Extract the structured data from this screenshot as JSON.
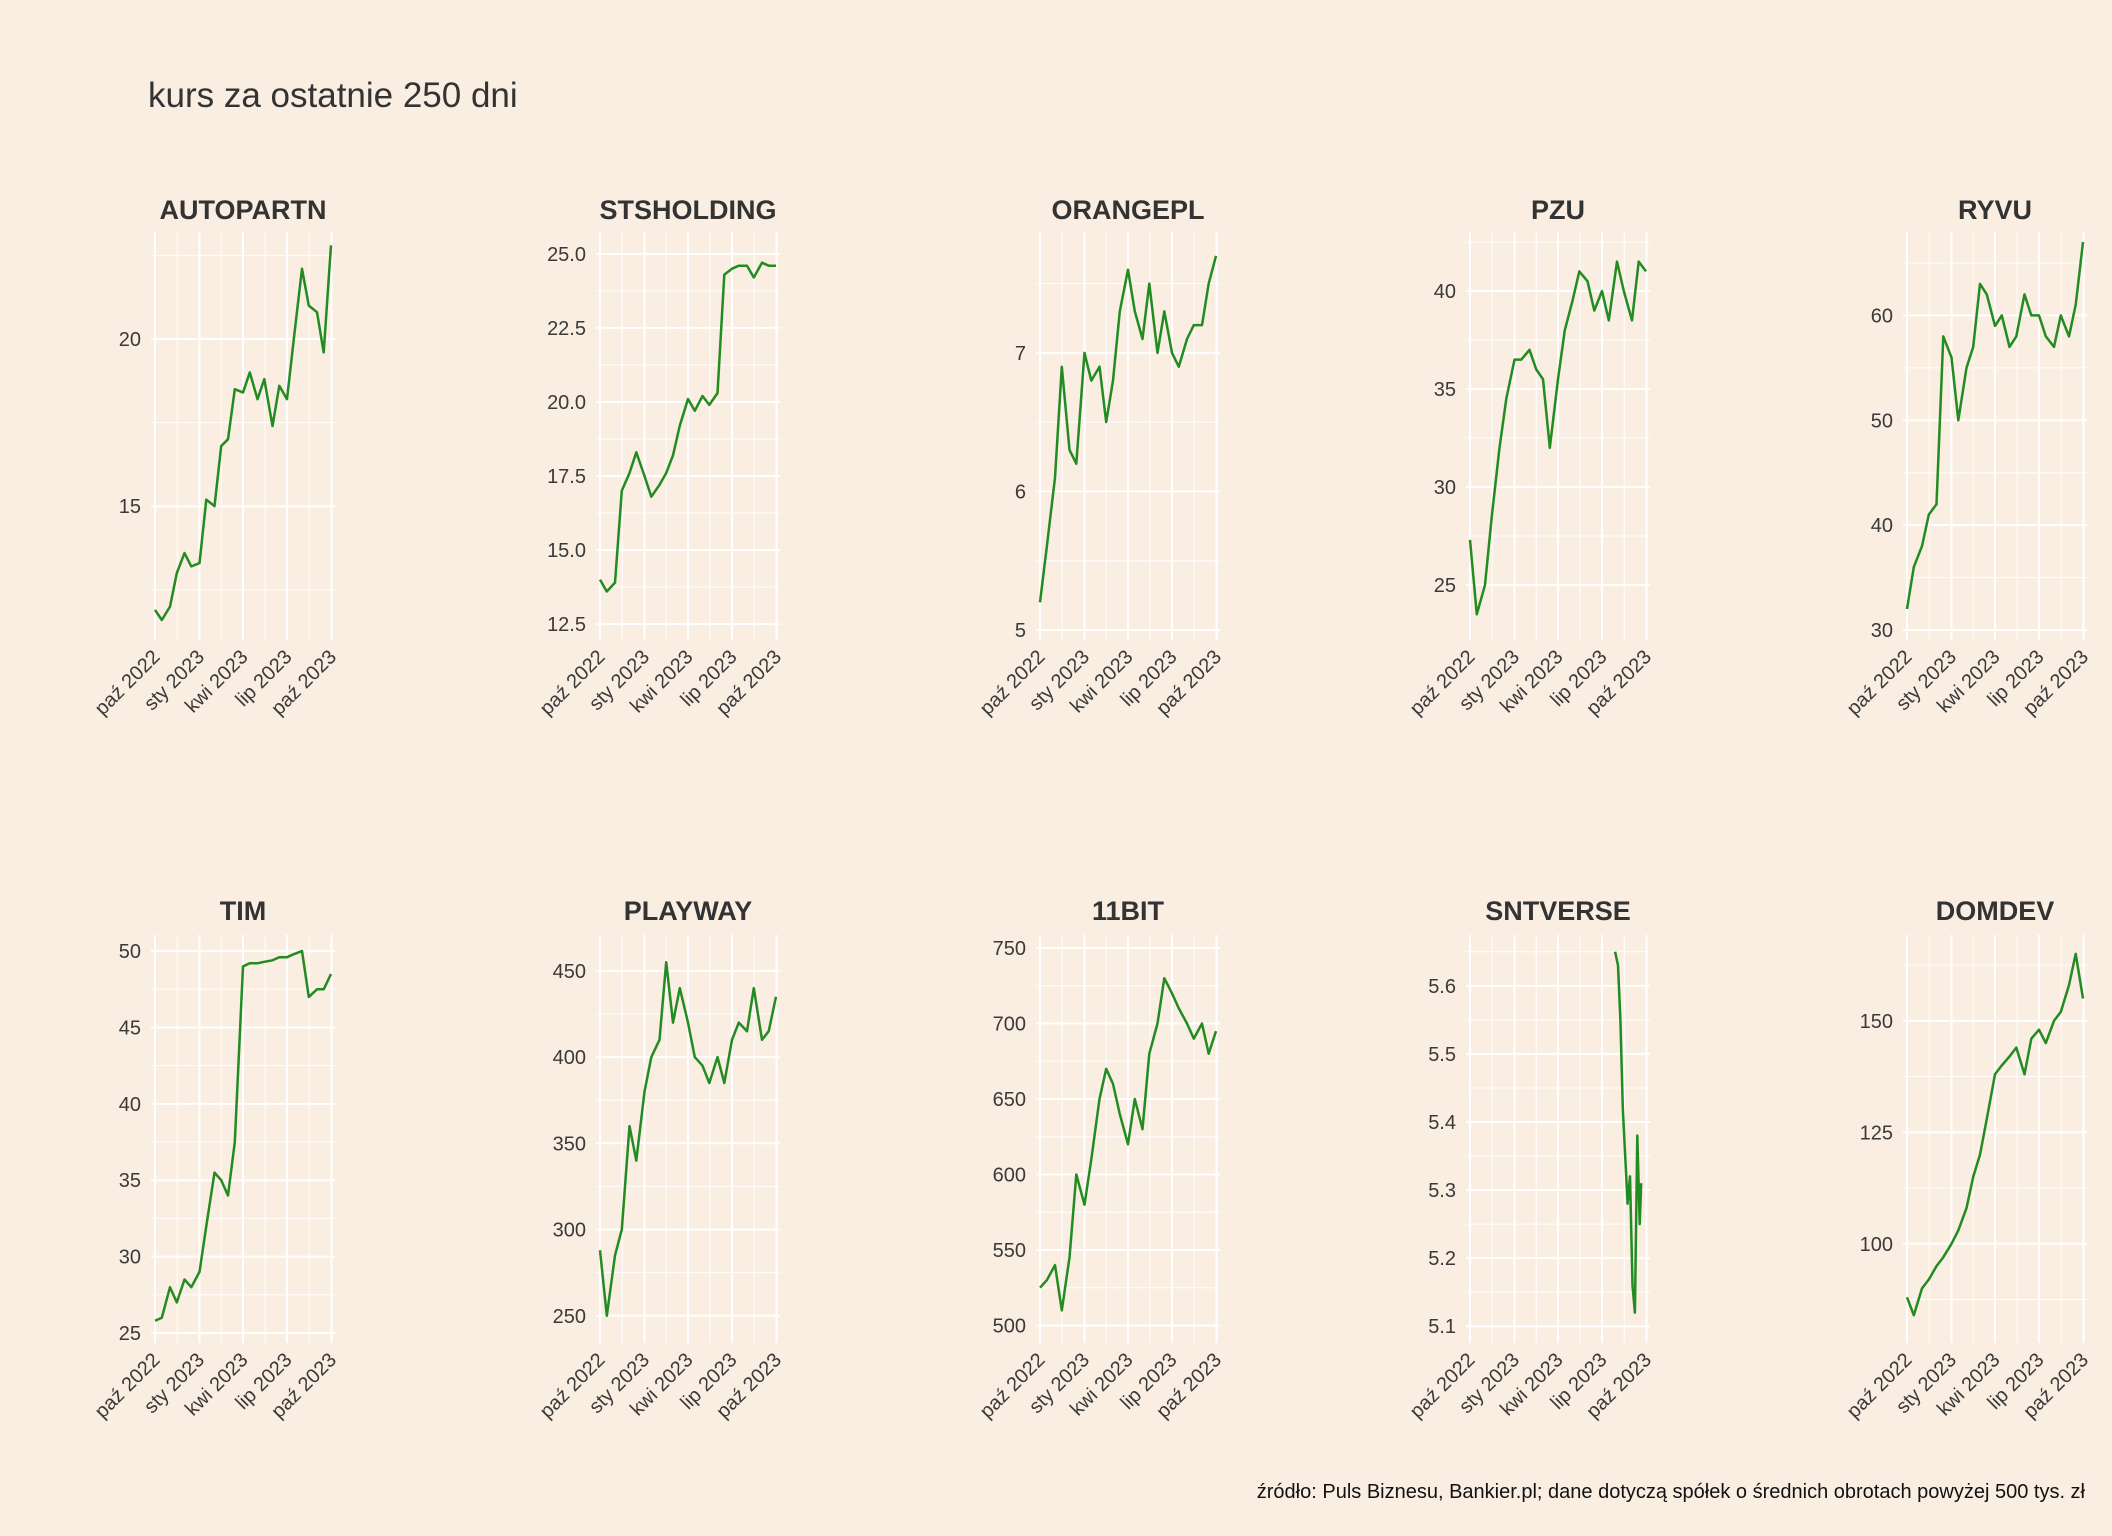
{
  "title": "kurs za ostatnie 250 dni",
  "caption": "źródło: Puls Biznesu, Bankier.pl; dane dotyczą spółek o średnich obrotach powyżej 500 tys. zł",
  "colors": {
    "background": "#FAEDE1",
    "line": "#228B22",
    "grid": "#FFFFFF",
    "text": "#3a3a3a"
  },
  "chart_data": [
    {
      "type": "line",
      "title": "AUTOPARTN",
      "x_tick_labels": [
        "paź 2022",
        "sty 2023",
        "kwi 2023",
        "lip 2023",
        "paź 2023"
      ],
      "y_ticks": [
        15,
        20
      ],
      "ylim": [
        11.3,
        22.9
      ],
      "xlim": [
        "2022-10-01",
        "2023-09-30"
      ],
      "series": [
        {
          "x": [
            "2022-10-01",
            "2022-10-15",
            "2022-11-01",
            "2022-11-15",
            "2022-12-01",
            "2022-12-15",
            "2023-01-01",
            "2023-01-15",
            "2023-02-01",
            "2023-02-15",
            "2023-03-01",
            "2023-03-15",
            "2023-04-01",
            "2023-04-15",
            "2023-05-01",
            "2023-05-15",
            "2023-06-01",
            "2023-06-15",
            "2023-07-01",
            "2023-07-15",
            "2023-08-01",
            "2023-08-15",
            "2023-09-01",
            "2023-09-15",
            "2023-09-30"
          ],
          "y": [
            11.9,
            11.6,
            12.0,
            13.0,
            13.6,
            13.2,
            13.3,
            15.2,
            15.0,
            16.8,
            17.0,
            18.5,
            18.4,
            19.0,
            18.2,
            18.8,
            17.4,
            18.6,
            18.2,
            20.0,
            22.1,
            21.0,
            20.8,
            19.6,
            22.8
          ]
        }
      ]
    },
    {
      "type": "line",
      "title": "STSHOLDING",
      "x_tick_labels": [
        "paź 2022",
        "sty 2023",
        "kwi 2023",
        "lip 2023",
        "paź 2023"
      ],
      "y_ticks": [
        12.5,
        15.0,
        17.5,
        20.0,
        22.5,
        25.0
      ],
      "y_tick_labels": [
        "12.5",
        "15.0",
        "17.5",
        "20.0",
        "22.5",
        "25.0"
      ],
      "ylim": [
        12.3,
        25.4
      ],
      "xlim": [
        "2022-10-01",
        "2023-09-30"
      ],
      "series": [
        {
          "x": [
            "2022-10-01",
            "2022-10-15",
            "2022-11-01",
            "2022-11-15",
            "2022-12-01",
            "2022-12-15",
            "2023-01-01",
            "2023-01-15",
            "2023-02-01",
            "2023-02-15",
            "2023-03-01",
            "2023-03-15",
            "2023-04-01",
            "2023-04-15",
            "2023-05-01",
            "2023-05-15",
            "2023-06-01",
            "2023-06-15",
            "2023-07-01",
            "2023-07-15",
            "2023-08-01",
            "2023-08-15",
            "2023-09-01",
            "2023-09-15",
            "2023-09-30"
          ],
          "y": [
            14.0,
            13.6,
            13.9,
            17.0,
            17.6,
            18.3,
            17.5,
            16.8,
            17.2,
            17.6,
            18.2,
            19.2,
            20.1,
            19.7,
            20.2,
            19.9,
            20.3,
            24.3,
            24.5,
            24.6,
            24.6,
            24.2,
            24.7,
            24.6,
            24.6
          ]
        }
      ]
    },
    {
      "type": "line",
      "title": "ORANGEPL",
      "x_tick_labels": [
        "paź 2022",
        "sty 2023",
        "kwi 2023",
        "lip 2023",
        "paź 2023"
      ],
      "y_ticks": [
        5,
        6,
        7
      ],
      "ylim": [
        5.0,
        7.8
      ],
      "xlim": [
        "2022-10-01",
        "2023-09-30"
      ],
      "series": [
        {
          "x": [
            "2022-10-01",
            "2022-10-15",
            "2022-11-01",
            "2022-11-15",
            "2022-12-01",
            "2022-12-15",
            "2023-01-01",
            "2023-01-15",
            "2023-02-01",
            "2023-02-15",
            "2023-03-01",
            "2023-03-15",
            "2023-04-01",
            "2023-04-15",
            "2023-05-01",
            "2023-05-15",
            "2023-06-01",
            "2023-06-15",
            "2023-07-01",
            "2023-07-15",
            "2023-08-01",
            "2023-08-15",
            "2023-09-01",
            "2023-09-15",
            "2023-09-30"
          ],
          "y": [
            5.2,
            5.6,
            6.1,
            6.9,
            6.3,
            6.2,
            7.0,
            6.8,
            6.9,
            6.5,
            6.8,
            7.3,
            7.6,
            7.3,
            7.1,
            7.5,
            7.0,
            7.3,
            7.0,
            6.9,
            7.1,
            7.2,
            7.2,
            7.5,
            7.7
          ]
        }
      ]
    },
    {
      "type": "line",
      "title": "PZU",
      "x_tick_labels": [
        "paź 2022",
        "sty 2023",
        "kwi 2023",
        "lip 2023",
        "paź 2023"
      ],
      "y_ticks": [
        25,
        30,
        35,
        40
      ],
      "ylim": [
        22.7,
        42.5
      ],
      "xlim": [
        "2022-10-01",
        "2023-09-30"
      ],
      "series": [
        {
          "x": [
            "2022-10-01",
            "2022-10-15",
            "2022-11-01",
            "2022-11-15",
            "2022-12-01",
            "2022-12-15",
            "2023-01-01",
            "2023-01-15",
            "2023-02-01",
            "2023-02-15",
            "2023-03-01",
            "2023-03-15",
            "2023-04-01",
            "2023-04-15",
            "2023-05-01",
            "2023-05-15",
            "2023-06-01",
            "2023-06-15",
            "2023-07-01",
            "2023-07-15",
            "2023-08-01",
            "2023-08-15",
            "2023-09-01",
            "2023-09-15",
            "2023-09-30"
          ],
          "y": [
            27.3,
            23.5,
            25.0,
            28.5,
            32.0,
            34.5,
            36.5,
            36.5,
            37.0,
            36.0,
            35.5,
            32.0,
            35.5,
            38.0,
            39.5,
            41.0,
            40.5,
            39.0,
            40.0,
            38.5,
            41.5,
            40.0,
            38.5,
            41.5,
            41.0
          ]
        }
      ]
    },
    {
      "type": "line",
      "title": "RYVU",
      "x_tick_labels": [
        "paź 2022",
        "sty 2023",
        "kwi 2023",
        "lip 2023",
        "paź 2023"
      ],
      "y_ticks": [
        30,
        40,
        50,
        60
      ],
      "ylim": [
        30,
        67
      ],
      "xlim": [
        "2022-10-01",
        "2023-09-30"
      ],
      "series": [
        {
          "x": [
            "2022-10-01",
            "2022-10-15",
            "2022-11-01",
            "2022-11-15",
            "2022-12-01",
            "2022-12-15",
            "2023-01-01",
            "2023-01-15",
            "2023-02-01",
            "2023-02-15",
            "2023-03-01",
            "2023-03-15",
            "2023-04-01",
            "2023-04-15",
            "2023-05-01",
            "2023-05-15",
            "2023-06-01",
            "2023-06-15",
            "2023-07-01",
            "2023-07-15",
            "2023-08-01",
            "2023-08-15",
            "2023-09-01",
            "2023-09-15",
            "2023-09-30"
          ],
          "y": [
            32,
            36,
            38,
            41,
            42,
            58,
            56,
            50,
            55,
            57,
            63,
            62,
            59,
            60,
            57,
            58,
            62,
            60,
            60,
            58,
            57,
            60,
            58,
            61,
            67
          ]
        }
      ]
    },
    {
      "type": "line",
      "title": "TIM",
      "x_tick_labels": [
        "paź 2022",
        "sty 2023",
        "kwi 2023",
        "lip 2023",
        "paź 2023"
      ],
      "y_ticks": [
        25,
        30,
        35,
        40,
        45,
        50
      ],
      "ylim": [
        25,
        50.4
      ],
      "xlim": [
        "2022-10-01",
        "2023-09-30"
      ],
      "series": [
        {
          "x": [
            "2022-10-01",
            "2022-10-15",
            "2022-11-01",
            "2022-11-15",
            "2022-12-01",
            "2022-12-15",
            "2023-01-01",
            "2023-01-15",
            "2023-02-01",
            "2023-02-15",
            "2023-03-01",
            "2023-03-15",
            "2023-04-01",
            "2023-04-15",
            "2023-05-01",
            "2023-05-15",
            "2023-06-01",
            "2023-06-15",
            "2023-07-01",
            "2023-07-15",
            "2023-08-01",
            "2023-08-15",
            "2023-09-01",
            "2023-09-15",
            "2023-09-30"
          ],
          "y": [
            25.8,
            26.0,
            28.0,
            27.0,
            28.5,
            28.0,
            29.0,
            32.0,
            35.5,
            35.0,
            34.0,
            37.5,
            49.0,
            49.2,
            49.2,
            49.3,
            49.4,
            49.6,
            49.6,
            49.8,
            50.0,
            47.0,
            47.5,
            47.5,
            48.5
          ]
        }
      ]
    },
    {
      "type": "line",
      "title": "PLAYWAY",
      "x_tick_labels": [
        "paź 2022",
        "sty 2023",
        "kwi 2023",
        "lip 2023",
        "paź 2023"
      ],
      "y_ticks": [
        250,
        300,
        350,
        400,
        450
      ],
      "ylim": [
        240,
        465
      ],
      "xlim": [
        "2022-10-01",
        "2023-09-30"
      ],
      "series": [
        {
          "x": [
            "2022-10-01",
            "2022-10-15",
            "2022-11-01",
            "2022-11-15",
            "2022-12-01",
            "2022-12-15",
            "2023-01-01",
            "2023-01-15",
            "2023-02-01",
            "2023-02-15",
            "2023-03-01",
            "2023-03-15",
            "2023-04-01",
            "2023-04-15",
            "2023-05-01",
            "2023-05-15",
            "2023-06-01",
            "2023-06-15",
            "2023-07-01",
            "2023-07-15",
            "2023-08-01",
            "2023-08-15",
            "2023-09-01",
            "2023-09-15",
            "2023-09-30"
          ],
          "y": [
            288,
            250,
            285,
            300,
            360,
            340,
            380,
            400,
            410,
            455,
            420,
            440,
            420,
            400,
            395,
            385,
            400,
            385,
            410,
            420,
            415,
            440,
            410,
            415,
            435
          ]
        }
      ]
    },
    {
      "type": "line",
      "title": "11BIT",
      "x_tick_labels": [
        "paź 2022",
        "sty 2023",
        "kwi 2023",
        "lip 2023",
        "paź 2023"
      ],
      "y_ticks": [
        500,
        550,
        600,
        650,
        700,
        750
      ],
      "ylim": [
        495,
        752
      ],
      "xlim": [
        "2022-10-01",
        "2023-09-30"
      ],
      "series": [
        {
          "x": [
            "2022-10-01",
            "2022-10-15",
            "2022-11-01",
            "2022-11-15",
            "2022-12-01",
            "2022-12-15",
            "2023-01-01",
            "2023-01-15",
            "2023-02-01",
            "2023-02-15",
            "2023-03-01",
            "2023-03-15",
            "2023-04-01",
            "2023-04-15",
            "2023-05-01",
            "2023-05-15",
            "2023-06-01",
            "2023-06-15",
            "2023-07-01",
            "2023-07-15",
            "2023-08-01",
            "2023-08-15",
            "2023-09-01",
            "2023-09-15",
            "2023-09-30"
          ],
          "y": [
            525,
            530,
            540,
            510,
            545,
            600,
            580,
            610,
            650,
            670,
            660,
            640,
            620,
            650,
            630,
            680,
            700,
            730,
            720,
            710,
            700,
            690,
            700,
            680,
            695
          ]
        }
      ]
    },
    {
      "type": "line",
      "title": "SNTVERSE",
      "x_tick_labels": [
        "paź 2022",
        "sty 2023",
        "kwi 2023",
        "lip 2023",
        "paź 2023"
      ],
      "y_ticks": [
        5.1,
        5.2,
        5.3,
        5.4,
        5.5,
        5.6
      ],
      "y_tick_labels": [
        "5.1",
        "5.2",
        "5.3",
        "5.4",
        "5.5",
        "5.6"
      ],
      "ylim": [
        5.09,
        5.66
      ],
      "xlim": [
        "2022-10-01",
        "2023-09-30"
      ],
      "series": [
        {
          "x": [
            "2023-07-28",
            "2023-08-03",
            "2023-08-08",
            "2023-08-13",
            "2023-08-18",
            "2023-08-23",
            "2023-08-28",
            "2023-09-02",
            "2023-09-07",
            "2023-09-12",
            "2023-09-17",
            "2023-09-20"
          ],
          "y": [
            5.65,
            5.63,
            5.55,
            5.42,
            5.35,
            5.28,
            5.32,
            5.16,
            5.12,
            5.38,
            5.25,
            5.31
          ]
        }
      ]
    },
    {
      "type": "line",
      "title": "DOMDEV",
      "x_tick_labels": [
        "paź 2022",
        "sty 2023",
        "kwi 2023",
        "lip 2023",
        "paź 2023"
      ],
      "y_ticks": [
        100,
        125,
        150
      ],
      "ylim": [
        80,
        167
      ],
      "xlim": [
        "2022-10-01",
        "2023-09-30"
      ],
      "series": [
        {
          "x": [
            "2022-10-01",
            "2022-10-15",
            "2022-11-01",
            "2022-11-15",
            "2022-12-01",
            "2022-12-15",
            "2023-01-01",
            "2023-01-15",
            "2023-02-01",
            "2023-02-15",
            "2023-03-01",
            "2023-03-15",
            "2023-04-01",
            "2023-04-15",
            "2023-05-01",
            "2023-05-15",
            "2023-06-01",
            "2023-06-15",
            "2023-07-01",
            "2023-07-15",
            "2023-08-01",
            "2023-08-15",
            "2023-09-01",
            "2023-09-15",
            "2023-09-30"
          ],
          "y": [
            88,
            84,
            90,
            92,
            95,
            97,
            100,
            103,
            108,
            115,
            120,
            128,
            138,
            140,
            142,
            144,
            138,
            146,
            148,
            145,
            150,
            152,
            158,
            165,
            155
          ]
        }
      ]
    }
  ]
}
